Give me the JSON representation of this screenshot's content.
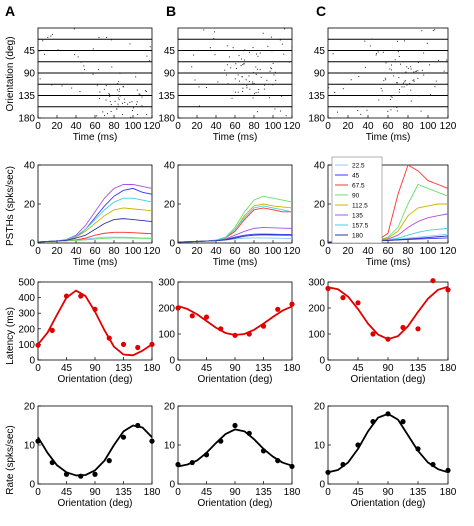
{
  "panel_labels": [
    "A",
    "B",
    "C"
  ],
  "colors": {
    "latency": "#e00000",
    "rate": "#000000",
    "psth_series": [
      "#88c8ff",
      "#3a3aff",
      "#ff3030",
      "#6adf6a",
      "#c8b400",
      "#b050e0",
      "#40d0e0",
      "#3030aa"
    ]
  },
  "row_labels": {
    "raster_y": "Orientation (deg)",
    "psth_y": "PSTHs (spks/sec)",
    "latency_y": "Latency (ms)",
    "rate_y": "Rate (spks/sec)"
  },
  "chart_data": [
    {
      "id": "raster-A",
      "type": "scatter",
      "kind": "raster",
      "xlabel": "Time (ms)",
      "ylabel": "Orientation (deg)",
      "xlim": [
        0,
        120
      ],
      "ylim": [
        0,
        180
      ],
      "xticks": [
        0,
        20,
        40,
        60,
        80,
        100,
        120
      ],
      "yticks": [
        45,
        90,
        135,
        180
      ],
      "peak_time_ms": 90,
      "peak_orientation_deg": 157.5
    },
    {
      "id": "raster-B",
      "type": "scatter",
      "kind": "raster",
      "xlabel": "Time (ms)",
      "xlim": [
        0,
        120
      ],
      "ylim": [
        0,
        180
      ],
      "xticks": [
        0,
        20,
        40,
        60,
        80,
        100,
        120
      ],
      "yticks": [
        45,
        90,
        135,
        180
      ],
      "peak_time_ms": 80,
      "peak_orientation_deg": 90
    },
    {
      "id": "raster-C",
      "type": "scatter",
      "kind": "raster",
      "xlabel": "Time (ms)",
      "xlim": [
        0,
        120
      ],
      "ylim": [
        0,
        180
      ],
      "xticks": [
        0,
        20,
        40,
        60,
        80,
        100,
        120
      ],
      "yticks": [
        45,
        90,
        135,
        180
      ],
      "peak_time_ms": 80,
      "peak_orientation_deg": 90
    },
    {
      "id": "psth-A",
      "type": "line",
      "xlabel": "Time (ms)",
      "ylabel": "PSTHs (spks/sec)",
      "xlim": [
        0,
        120
      ],
      "ylim": [
        0,
        40
      ],
      "xticks": [
        0,
        20,
        40,
        60,
        80,
        100,
        120
      ],
      "yticks": [
        0,
        20,
        40
      ],
      "x": [
        0,
        10,
        20,
        30,
        40,
        50,
        60,
        70,
        80,
        90,
        100,
        110,
        120
      ],
      "series": [
        {
          "values": [
            0.5,
            0.8,
            1,
            1.2,
            1.5,
            2,
            2.5,
            3,
            3,
            3,
            2.8,
            2.6,
            2.5
          ]
        },
        {
          "values": [
            0.5,
            0.8,
            1,
            1.5,
            3,
            7,
            13,
            19,
            24,
            27,
            28,
            26,
            25
          ]
        },
        {
          "values": [
            0.5,
            0.8,
            1,
            1.2,
            1.6,
            2.5,
            4,
            5,
            5.5,
            5.5,
            5.3,
            5,
            4.8
          ]
        },
        {
          "values": [
            0.5,
            0.8,
            1,
            1.1,
            1.3,
            1.6,
            2,
            2.4,
            2.6,
            2.6,
            2.5,
            2.4,
            2.3
          ]
        },
        {
          "values": [
            0.5,
            0.8,
            1,
            1.5,
            3,
            6,
            10,
            14,
            17,
            18,
            17.5,
            17,
            16.5
          ]
        },
        {
          "values": [
            0.5,
            0.8,
            1,
            1.8,
            4,
            9,
            16,
            23,
            28,
            30,
            30,
            29,
            28
          ]
        },
        {
          "values": [
            0.5,
            0.8,
            1,
            1.6,
            3.5,
            7,
            12,
            17,
            21,
            23,
            23,
            22,
            21
          ]
        },
        {
          "values": [
            0.5,
            0.8,
            1,
            1.4,
            2.5,
            4,
            7,
            10,
            12,
            12.5,
            12,
            11.5,
            11
          ]
        }
      ]
    },
    {
      "id": "psth-B",
      "type": "line",
      "xlabel": "Time (ms)",
      "xlim": [
        0,
        120
      ],
      "ylim": [
        0,
        40
      ],
      "xticks": [
        0,
        20,
        40,
        60,
        80,
        100,
        120
      ],
      "yticks": [
        0,
        20,
        40
      ],
      "x": [
        0,
        10,
        20,
        30,
        40,
        50,
        60,
        70,
        80,
        90,
        100,
        110,
        120
      ],
      "series": [
        {
          "values": [
            0.5,
            0.6,
            0.8,
            1,
            1.2,
            1.5,
            2,
            2.5,
            2.6,
            2.6,
            2.5,
            2.4,
            2.3
          ]
        },
        {
          "values": [
            0.5,
            0.6,
            0.8,
            1,
            1.2,
            1.8,
            3,
            4,
            4.5,
            4.6,
            4.5,
            4.4,
            4.3
          ]
        },
        {
          "values": [
            0.5,
            0.6,
            0.8,
            1,
            1.4,
            2.5,
            6,
            12,
            17,
            18,
            17,
            16,
            16
          ]
        },
        {
          "values": [
            0.5,
            0.6,
            0.8,
            1,
            1.5,
            3,
            8,
            16,
            22,
            24,
            23,
            22,
            21
          ]
        },
        {
          "values": [
            0.5,
            0.6,
            0.8,
            1,
            1.4,
            2.5,
            7,
            14,
            19,
            20,
            19,
            18.5,
            18
          ]
        },
        {
          "values": [
            0.5,
            0.6,
            0.8,
            1,
            1.3,
            2,
            4,
            6,
            7.5,
            8,
            7.8,
            7.6,
            7.5
          ]
        },
        {
          "values": [
            0.5,
            0.6,
            0.8,
            1,
            1.5,
            2.8,
            7,
            13,
            18,
            19,
            18,
            17,
            16
          ]
        },
        {
          "values": [
            0.5,
            0.6,
            0.8,
            1,
            1.2,
            1.6,
            2.5,
            3.5,
            4,
            4.2,
            4.1,
            4,
            4
          ]
        }
      ]
    },
    {
      "id": "psth-C",
      "type": "line",
      "xlabel": "Time (ms)",
      "xlim": [
        0,
        120
      ],
      "ylim": [
        0,
        40
      ],
      "xticks": [
        0,
        20,
        40,
        60,
        80,
        100,
        120
      ],
      "yticks": [
        0,
        20,
        40
      ],
      "legend_position": "top-left",
      "x": [
        0,
        10,
        20,
        30,
        40,
        50,
        60,
        70,
        80,
        90,
        100,
        110,
        120
      ],
      "series": [
        {
          "name": "22.5",
          "values": [
            0.5,
            0.6,
            0.7,
            0.8,
            1,
            1.2,
            1.5,
            2,
            2.5,
            3,
            3.5,
            4,
            4.5
          ]
        },
        {
          "name": "45",
          "values": [
            0.5,
            0.6,
            0.7,
            0.8,
            1,
            1.2,
            1.4,
            1.6,
            1.8,
            2,
            2.2,
            2.4,
            2.6
          ]
        },
        {
          "name": "67.5",
          "values": [
            0.5,
            0.6,
            0.7,
            0.8,
            1,
            1.5,
            5,
            25,
            40,
            37,
            32,
            30,
            28
          ]
        },
        {
          "name": "90",
          "values": [
            0.5,
            0.6,
            0.7,
            0.8,
            1,
            1.5,
            3,
            8,
            20,
            30,
            28,
            26,
            24
          ]
        },
        {
          "name": "112.5",
          "values": [
            0.5,
            0.6,
            0.7,
            0.8,
            1,
            1.4,
            2.5,
            6,
            14,
            18,
            19,
            20,
            20
          ]
        },
        {
          "name": "135",
          "values": [
            0.5,
            0.6,
            0.7,
            0.8,
            1,
            1.3,
            2,
            4,
            8,
            11,
            13,
            14,
            15
          ]
        },
        {
          "name": "157.5",
          "values": [
            0.5,
            0.6,
            0.7,
            0.8,
            1,
            1.2,
            1.6,
            2.5,
            4,
            5.5,
            6.5,
            7,
            7.5
          ]
        },
        {
          "name": "180",
          "values": [
            0.5,
            0.6,
            0.7,
            0.8,
            1,
            1.1,
            1.3,
            1.6,
            2,
            2.4,
            2.8,
            3.2,
            3.6
          ]
        }
      ]
    },
    {
      "id": "latency-A",
      "type": "scatter",
      "xlabel": "Orientation (deg)",
      "ylabel": "Latency (ms)",
      "xlim": [
        0,
        180
      ],
      "ylim": [
        0,
        500
      ],
      "xticks": [
        0,
        45,
        90,
        135,
        180
      ],
      "yticks": [
        0,
        100,
        200,
        300,
        400,
        500
      ],
      "points_x": [
        0,
        22.5,
        45,
        67.5,
        90,
        112.5,
        135,
        157.5,
        180
      ],
      "points_y": [
        95,
        190,
        410,
        410,
        325,
        140,
        100,
        80,
        100
      ],
      "fit_x": [
        0,
        15,
        30,
        45,
        60,
        75,
        90,
        105,
        120,
        135,
        150,
        165,
        180
      ],
      "fit_y": [
        100,
        175,
        290,
        400,
        445,
        410,
        310,
        190,
        85,
        35,
        30,
        60,
        100
      ]
    },
    {
      "id": "latency-B",
      "type": "scatter",
      "xlabel": "Orientation (deg)",
      "xlim": [
        0,
        180
      ],
      "ylim": [
        0,
        300
      ],
      "xticks": [
        0,
        45,
        90,
        135,
        180
      ],
      "yticks": [
        0,
        100,
        200,
        300
      ],
      "points_x": [
        0,
        22.5,
        45,
        67.5,
        90,
        112.5,
        135,
        157.5,
        180
      ],
      "points_y": [
        200,
        170,
        165,
        120,
        95,
        100,
        130,
        195,
        215
      ],
      "fit_x": [
        0,
        15,
        30,
        45,
        60,
        75,
        90,
        105,
        120,
        135,
        150,
        165,
        180
      ],
      "fit_y": [
        208,
        196,
        176,
        150,
        124,
        104,
        96,
        100,
        116,
        140,
        166,
        190,
        206
      ]
    },
    {
      "id": "latency-C",
      "type": "scatter",
      "xlabel": "Orientation (deg)",
      "xlim": [
        0,
        180
      ],
      "ylim": [
        0,
        300
      ],
      "xticks": [
        0,
        45,
        90,
        135,
        180
      ],
      "yticks": [
        0,
        100,
        200,
        300
      ],
      "points_x": [
        0,
        22.5,
        45,
        67.5,
        90,
        112.5,
        135,
        157.5,
        180
      ],
      "points_y": [
        275,
        240,
        220,
        100,
        80,
        125,
        120,
        305,
        270
      ],
      "fit_x": [
        0,
        15,
        30,
        45,
        60,
        75,
        90,
        105,
        120,
        135,
        150,
        165,
        180
      ],
      "fit_y": [
        280,
        272,
        244,
        196,
        140,
        98,
        80,
        92,
        130,
        185,
        236,
        270,
        282
      ]
    },
    {
      "id": "rate-A",
      "type": "scatter",
      "xlabel": "Orientation (deg)",
      "ylabel": "Rate (spks/sec)",
      "xlim": [
        0,
        180
      ],
      "ylim": [
        0,
        20
      ],
      "xticks": [
        0,
        45,
        90,
        135,
        180
      ],
      "yticks": [
        0,
        10,
        20
      ],
      "points_x": [
        0,
        22.5,
        45,
        67.5,
        90,
        112.5,
        135,
        157.5,
        180
      ],
      "points_y": [
        11,
        5.5,
        2.5,
        2,
        2.5,
        6,
        12,
        15,
        11
      ],
      "fit_x": [
        0,
        15,
        30,
        45,
        60,
        75,
        90,
        105,
        120,
        135,
        150,
        165,
        180
      ],
      "fit_y": [
        12,
        8,
        4.8,
        3,
        2.2,
        2.3,
        3.5,
        6,
        10,
        13.5,
        15,
        14.5,
        12
      ]
    },
    {
      "id": "rate-B",
      "type": "scatter",
      "xlabel": "Orientation (deg)",
      "xlim": [
        0,
        180
      ],
      "ylim": [
        0,
        20
      ],
      "xticks": [
        0,
        45,
        90,
        135,
        180
      ],
      "yticks": [
        0,
        10,
        20
      ],
      "points_x": [
        0,
        22.5,
        45,
        67.5,
        90,
        112.5,
        135,
        157.5,
        180
      ],
      "points_y": [
        5,
        5.5,
        7.5,
        11,
        15,
        13,
        8.5,
        6,
        4.5
      ],
      "fit_x": [
        0,
        15,
        30,
        45,
        60,
        75,
        90,
        105,
        120,
        135,
        150,
        165,
        180
      ],
      "fit_y": [
        4.5,
        5,
        6,
        8,
        10.5,
        12.8,
        14,
        13.5,
        11.5,
        9,
        7,
        5.5,
        4.7
      ]
    },
    {
      "id": "rate-C",
      "type": "scatter",
      "xlabel": "Orientation (deg)",
      "xlim": [
        0,
        180
      ],
      "ylim": [
        0,
        20
      ],
      "xticks": [
        0,
        45,
        90,
        135,
        180
      ],
      "yticks": [
        0,
        10,
        20
      ],
      "points_x": [
        0,
        22.5,
        45,
        67.5,
        90,
        112.5,
        135,
        157.5,
        180
      ],
      "points_y": [
        3,
        5,
        10,
        16,
        18,
        16,
        9,
        5,
        3.5
      ],
      "fit_x": [
        0,
        15,
        30,
        45,
        60,
        75,
        90,
        105,
        120,
        135,
        150,
        165,
        180
      ],
      "fit_y": [
        3,
        3.6,
        5.5,
        9,
        13.5,
        17,
        18,
        16.5,
        12.5,
        8.5,
        5.5,
        3.8,
        3
      ]
    }
  ]
}
